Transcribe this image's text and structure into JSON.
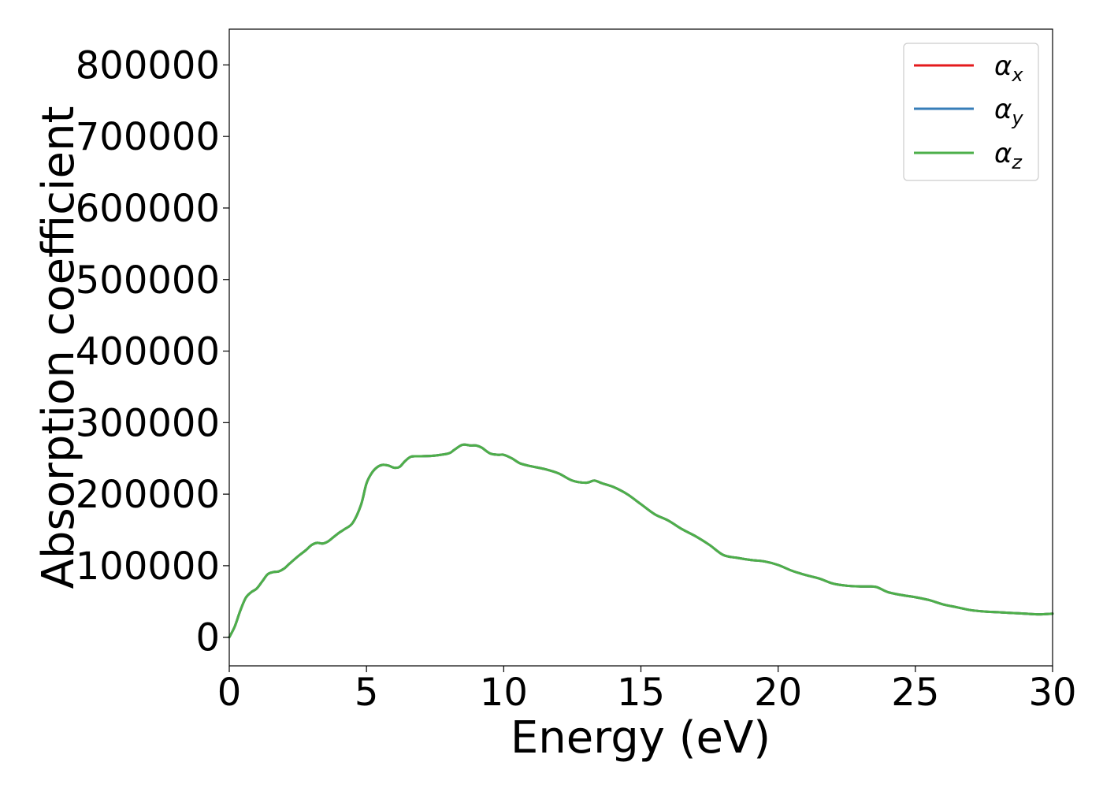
{
  "chart_data": {
    "type": "line",
    "title": "",
    "xlabel": "Energy (eV)",
    "ylabel": "Absorption coefficient",
    "xlim": [
      0,
      30
    ],
    "ylim": [
      -40000,
      850000
    ],
    "xticks": [
      0,
      5,
      10,
      15,
      20,
      25,
      30
    ],
    "xtick_labels": [
      "0",
      "5",
      "10",
      "15",
      "20",
      "25",
      "30"
    ],
    "yticks": [
      0,
      100000,
      200000,
      300000,
      400000,
      500000,
      600000,
      700000,
      800000
    ],
    "ytick_labels": [
      "0",
      "100000",
      "200000",
      "300000",
      "400000",
      "500000",
      "600000",
      "700000",
      "800000"
    ],
    "grid": false,
    "legend_position": "top-right",
    "x": [
      0,
      0.2,
      0.4,
      0.6,
      0.8,
      1.0,
      1.2,
      1.4,
      1.6,
      1.8,
      2.0,
      2.2,
      2.5,
      2.8,
      3.0,
      3.2,
      3.4,
      3.6,
      3.8,
      4.0,
      4.2,
      4.5,
      4.8,
      5.0,
      5.2,
      5.4,
      5.6,
      5.8,
      6.0,
      6.2,
      6.4,
      6.6,
      6.8,
      7.0,
      7.5,
      8.0,
      8.2,
      8.5,
      8.8,
      9.0,
      9.2,
      9.5,
      9.8,
      10.0,
      10.3,
      10.6,
      11.0,
      11.5,
      12.0,
      12.5,
      13.0,
      13.3,
      13.6,
      14.0,
      14.5,
      15.0,
      15.5,
      16.0,
      16.5,
      17.0,
      17.5,
      18.0,
      18.5,
      19.0,
      19.5,
      20.0,
      20.5,
      21.0,
      21.5,
      22.0,
      22.5,
      23.0,
      23.3,
      23.6,
      24.0,
      24.5,
      25.0,
      25.5,
      26.0,
      26.5,
      27.0,
      27.5,
      28.0,
      28.5,
      29.0,
      29.5,
      30.0
    ],
    "series": [
      {
        "name": "α_x",
        "label_main": "α",
        "label_sub": "x",
        "color": "#e41a1c",
        "values": [
          0,
          15000,
          37000,
          55000,
          63000,
          68000,
          78000,
          88000,
          91000,
          92000,
          96000,
          103000,
          113000,
          122000,
          129000,
          132000,
          131000,
          134000,
          140000,
          146000,
          151000,
          160000,
          185000,
          215000,
          230000,
          238000,
          241000,
          240000,
          237000,
          238000,
          246000,
          252000,
          253000,
          253000,
          254000,
          257000,
          262000,
          269000,
          268000,
          268000,
          265000,
          257000,
          255000,
          255000,
          250000,
          243000,
          239000,
          235000,
          229000,
          219000,
          216000,
          219000,
          215000,
          210000,
          200000,
          186000,
          172000,
          163000,
          151000,
          141000,
          129000,
          115000,
          111000,
          108000,
          106000,
          101000,
          93000,
          87000,
          82000,
          75000,
          72000,
          71000,
          71000,
          70000,
          63000,
          59000,
          56000,
          52000,
          46000,
          42000,
          38000,
          36000,
          35000,
          34000,
          33000,
          32000,
          33000
        ]
      },
      {
        "name": "α_y",
        "label_main": "α",
        "label_sub": "y",
        "color": "#377eb8",
        "values": [
          0,
          15000,
          37000,
          55000,
          63000,
          68000,
          78000,
          88000,
          91000,
          92000,
          96000,
          103000,
          113000,
          122000,
          129000,
          132000,
          131000,
          134000,
          140000,
          146000,
          151000,
          160000,
          185000,
          215000,
          230000,
          238000,
          241000,
          240000,
          237000,
          238000,
          246000,
          252000,
          253000,
          253000,
          254000,
          257000,
          262000,
          269000,
          268000,
          268000,
          265000,
          257000,
          255000,
          255000,
          250000,
          243000,
          239000,
          235000,
          229000,
          219000,
          216000,
          219000,
          215000,
          210000,
          200000,
          186000,
          172000,
          163000,
          151000,
          141000,
          129000,
          115000,
          111000,
          108000,
          106000,
          101000,
          93000,
          87000,
          82000,
          75000,
          72000,
          71000,
          71000,
          70000,
          63000,
          59000,
          56000,
          52000,
          46000,
          42000,
          38000,
          36000,
          35000,
          34000,
          33000,
          32000,
          33000
        ]
      },
      {
        "name": "α_z",
        "label_main": "α",
        "label_sub": "z",
        "color": "#4daf4a",
        "values": [
          0,
          15000,
          37000,
          55000,
          63000,
          68000,
          78000,
          88000,
          91000,
          92000,
          96000,
          103000,
          113000,
          122000,
          129000,
          132000,
          131000,
          134000,
          140000,
          146000,
          151000,
          160000,
          185000,
          215000,
          230000,
          238000,
          241000,
          240000,
          237000,
          238000,
          246000,
          252000,
          253000,
          253000,
          254000,
          257000,
          262000,
          269000,
          268000,
          268000,
          265000,
          257000,
          255000,
          255000,
          250000,
          243000,
          239000,
          235000,
          229000,
          219000,
          216000,
          219000,
          215000,
          210000,
          200000,
          186000,
          172000,
          163000,
          151000,
          141000,
          129000,
          115000,
          111000,
          108000,
          106000,
          101000,
          93000,
          87000,
          82000,
          75000,
          72000,
          71000,
          71000,
          70000,
          63000,
          59000,
          56000,
          52000,
          46000,
          42000,
          38000,
          36000,
          35000,
          34000,
          33000,
          32000,
          33000
        ]
      }
    ]
  },
  "colors": {
    "axis": "#000000",
    "legend_border": "#cccccc",
    "background": "#ffffff"
  }
}
